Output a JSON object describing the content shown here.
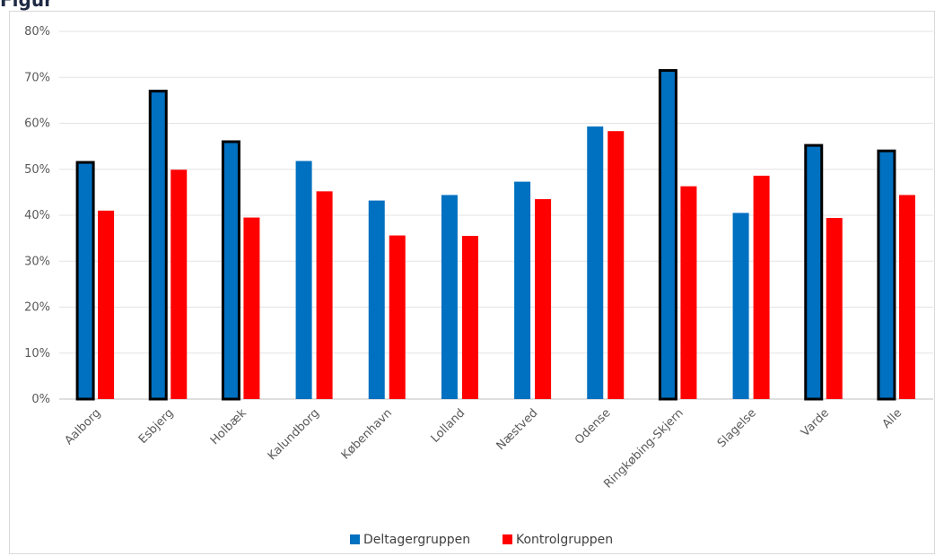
{
  "chart_data": {
    "type": "bar",
    "title": "Figur",
    "categories": [
      "Aalborg",
      "Esbjerg",
      "Holbæk",
      "Kalundborg",
      "København",
      "Lolland",
      "Næstved",
      "Odense",
      "Ringkøbing-Skjern",
      "Slagelse",
      "Varde",
      "Alle"
    ],
    "series": [
      {
        "name": "Deltagergruppen",
        "color": "#0070c0",
        "values": [
          51.5,
          67,
          56,
          51.8,
          43.2,
          44.4,
          47.3,
          59.3,
          71.5,
          40.5,
          55.2,
          54
        ],
        "outlined": [
          true,
          true,
          true,
          false,
          false,
          false,
          false,
          false,
          true,
          false,
          true,
          true
        ]
      },
      {
        "name": "Kontrolgruppen",
        "color": "#ff0000",
        "values": [
          41,
          49.9,
          39.5,
          45.2,
          35.6,
          35.5,
          43.5,
          58.3,
          46.3,
          48.6,
          39.4,
          44.4
        ]
      }
    ],
    "yticks": [
      "0%",
      "10%",
      "20%",
      "30%",
      "40%",
      "50%",
      "60%",
      "70%",
      "80%"
    ],
    "ylim": [
      0,
      80
    ],
    "grid": true,
    "legend_position": "bottom"
  }
}
